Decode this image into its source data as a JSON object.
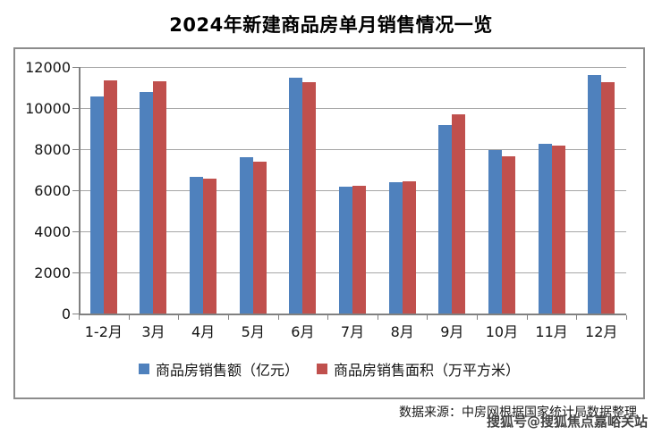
{
  "page": {
    "title": "2024年新建商品房单月销售情况一览",
    "footer_note": "数据来源：中房网根据国家统计局数据整理",
    "watermark": "搜狐号@搜狐焦点嘉峪关站"
  },
  "chart_data": {
    "type": "bar",
    "title": "2024年新建商品房单月销售情况一览",
    "categories": [
      "1-2月",
      "3月",
      "4月",
      "5月",
      "6月",
      "7月",
      "8月",
      "9月",
      "10月",
      "11月",
      "12月"
    ],
    "series": [
      {
        "name": "商品房销售额（亿元）",
        "color": "#4F81BD",
        "values": [
          10566,
          10789,
          6672,
          7617,
          11468,
          6197,
          6393,
          9157,
          7975,
          8270,
          11625
        ]
      },
      {
        "name": "商品房销售面积（万平方米）",
        "color": "#C0504D",
        "values": [
          11369,
          11299,
          6578,
          7387,
          11274,
          6233,
          6453,
          9682,
          7646,
          8188,
          11267
        ]
      }
    ],
    "xlabel": "",
    "ylabel": "",
    "ylim": [
      0,
      12000
    ],
    "yticks": [
      0,
      2000,
      4000,
      6000,
      8000,
      10000,
      12000
    ],
    "grid": true,
    "legend_position": "bottom",
    "gridline_color": "#a6a6a6",
    "axis_color": "#808080"
  }
}
